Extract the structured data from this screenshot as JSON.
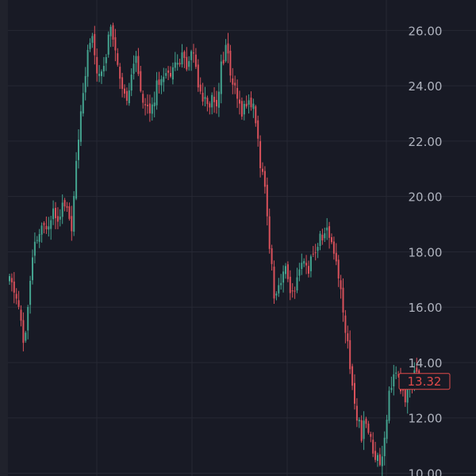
{
  "colors": {
    "background": "#181a25",
    "grid": "#262834",
    "axis_text": "#aeb2bd",
    "up": "#44a38f",
    "down": "#d9515b",
    "last_price": "#e04a4a"
  },
  "axis": {
    "price_ticks": [
      "10.00",
      "12.00",
      "14.00",
      "16.00",
      "18.00",
      "20.00",
      "22.00",
      "24.00",
      "26.00"
    ]
  },
  "last_price_label": "13.32",
  "chart_data": {
    "type": "candlestick",
    "ylim": [
      9.9,
      27.1
    ],
    "y_ticks": [
      10,
      12,
      14,
      16,
      18,
      20,
      22,
      24,
      26
    ],
    "grid": true,
    "last_price": 13.32,
    "x_label": "",
    "y_label": "",
    "close_path": [
      16.9,
      16.6,
      15.9,
      14.5,
      16.4,
      18.0,
      18.6,
      18.8,
      19.1,
      19.6,
      19.3,
      19.7,
      19.5,
      18.9,
      21.4,
      23.6,
      24.9,
      25.9,
      24.4,
      24.6,
      25.1,
      26.4,
      25.2,
      23.9,
      23.4,
      24.2,
      25.1,
      24.1,
      23.4,
      23.1,
      23.6,
      24.2,
      24.6,
      24.3,
      25.0,
      24.7,
      25.1,
      24.6,
      25.5,
      24.3,
      23.7,
      23.2,
      23.6,
      23.4,
      24.8,
      25.4,
      24.3,
      23.6,
      23.1,
      23.3,
      23.5,
      22.9,
      21.3,
      20.1,
      18.3,
      16.4,
      16.9,
      17.4,
      16.9,
      16.2,
      17.1,
      17.6,
      17.4,
      17.8,
      18.3,
      18.6,
      18.7,
      18.4,
      17.5,
      16.3,
      14.9,
      13.4,
      12.1,
      11.4,
      11.9,
      11.1,
      10.6,
      10.4,
      11.6,
      13.2,
      13.6,
      13.2,
      12.6,
      13.1,
      13.6,
      13.3
    ]
  }
}
